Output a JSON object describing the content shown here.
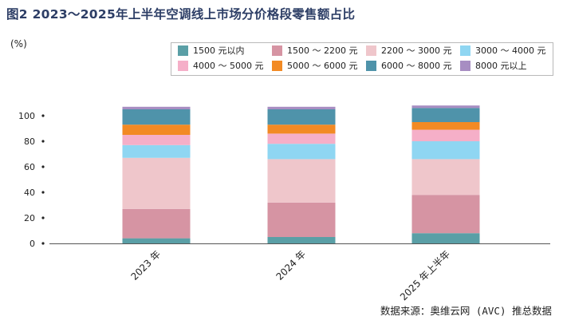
{
  "title": "图2  2023～2025年上半年空调线上市场分价格段零售额占比",
  "unit": "(%)",
  "source": "数据来源：奥维云网 (AVC) 推总数据",
  "chart_data": {
    "type": "bar",
    "stacked": true,
    "categories": [
      "2023 年",
      "2024 年",
      "2025 年上半年"
    ],
    "ylim": [
      0,
      100
    ],
    "yticks": [
      0,
      20,
      40,
      60,
      80,
      100
    ],
    "legend_position": "top",
    "series": [
      {
        "name": "1500 元以内",
        "color": "#5a9fa6",
        "values": [
          4,
          5,
          8
        ]
      },
      {
        "name": "1500 ～ 2200 元",
        "color": "#d694a3",
        "values": [
          23,
          27,
          30
        ]
      },
      {
        "name": "2200 ～ 3000 元",
        "color": "#efc6cb",
        "values": [
          40,
          34,
          28
        ]
      },
      {
        "name": "3000 ～ 4000 元",
        "color": "#8fd6f2",
        "values": [
          10,
          12,
          14
        ]
      },
      {
        "name": "4000 ～ 5000 元",
        "color": "#f5afc8",
        "values": [
          8,
          8,
          9
        ]
      },
      {
        "name": "5000 ～ 6000 元",
        "color": "#f28a24",
        "values": [
          8,
          7,
          6
        ]
      },
      {
        "name": "6000 ～ 8000 元",
        "color": "#4f93aa",
        "values": [
          12,
          12,
          11
        ]
      },
      {
        "name": "8000 元以上",
        "color": "#a78dc2",
        "values": [
          2,
          2,
          2
        ]
      }
    ]
  }
}
